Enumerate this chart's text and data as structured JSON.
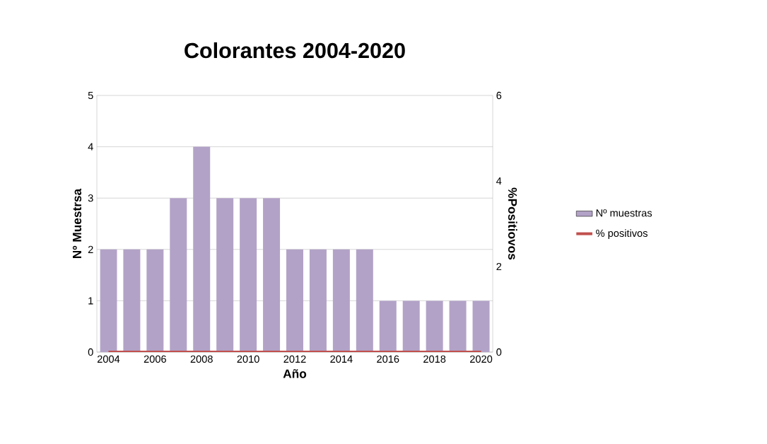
{
  "chart_data": {
    "type": "bar",
    "title": "Colorantes 2004-2020",
    "xlabel": "Año",
    "ylabel": "Nº Muestrsa",
    "y2label": "%Positiovos",
    "categories": [
      "2004",
      null,
      "2006",
      null,
      "2008",
      null,
      "2010",
      null,
      "2012",
      null,
      "2014",
      null,
      "2016",
      null,
      "2018",
      null,
      "2020"
    ],
    "series": [
      {
        "name": "Nº muestras",
        "color": "#b3a2c7",
        "values": [
          2,
          2,
          2,
          3,
          4,
          3,
          3,
          3,
          2,
          2,
          2,
          2,
          1,
          1,
          1,
          1,
          1
        ]
      },
      {
        "name": "% positivos",
        "type": "line",
        "axis": "y2",
        "color": "#c0504d",
        "values": [
          0,
          0,
          0,
          0,
          0,
          0,
          0,
          0,
          0,
          0,
          0,
          0,
          0,
          0,
          0,
          0,
          0
        ]
      }
    ],
    "ylim": [
      0,
      5
    ],
    "yticks": [
      0,
      1,
      2,
      3,
      4,
      5
    ],
    "y2lim": [
      0,
      6
    ],
    "y2ticks": [
      0,
      2,
      4,
      6
    ],
    "grid": "y",
    "legend": "right"
  }
}
